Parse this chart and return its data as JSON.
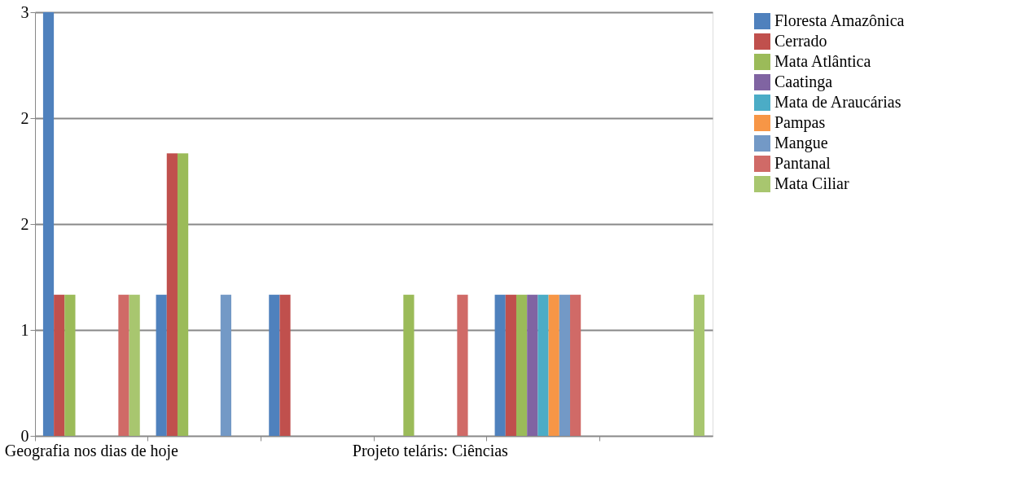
{
  "chart_data": {
    "type": "bar",
    "categories": [
      "Geografia nos dias de hoje",
      null,
      null,
      "Projeto teláris: Ciências",
      null,
      null
    ],
    "series": [
      {
        "name": "Floresta Amazônica",
        "color": "#4f81bd",
        "values": [
          3,
          1,
          1,
          0,
          1,
          0
        ]
      },
      {
        "name": "Cerrado",
        "color": "#c0504d",
        "values": [
          1,
          2,
          1,
          0,
          1,
          0
        ]
      },
      {
        "name": "Mata Atlântica",
        "color": "#9bbb59",
        "values": [
          1,
          2,
          0,
          1,
          1,
          0
        ]
      },
      {
        "name": "Caatinga",
        "color": "#8064a2",
        "values": [
          0,
          0,
          0,
          0,
          1,
          0
        ]
      },
      {
        "name": "Mata de Araucárias",
        "color": "#4bacc6",
        "values": [
          0,
          0,
          0,
          0,
          1,
          0
        ]
      },
      {
        "name": "Pampas",
        "color": "#f79646",
        "values": [
          0,
          0,
          0,
          0,
          1,
          0
        ]
      },
      {
        "name": "Mangue",
        "color": "#7399c6",
        "values": [
          0,
          1,
          0,
          0,
          1,
          0
        ]
      },
      {
        "name": "Pantanal",
        "color": "#d06a67",
        "values": [
          1,
          0,
          0,
          1,
          1,
          0
        ]
      },
      {
        "name": "Mata Ciliar",
        "color": "#a8c66f",
        "values": [
          1,
          0,
          0,
          0,
          0,
          1
        ]
      }
    ],
    "ylim": [
      0,
      3
    ],
    "yticks": [
      0,
      {
        "value": 0.75,
        "label": "1"
      },
      {
        "value": 1.5,
        "label": "2"
      },
      {
        "value": 2.25,
        "label": "2"
      },
      3
    ],
    "grid": "y",
    "legend": "right"
  }
}
